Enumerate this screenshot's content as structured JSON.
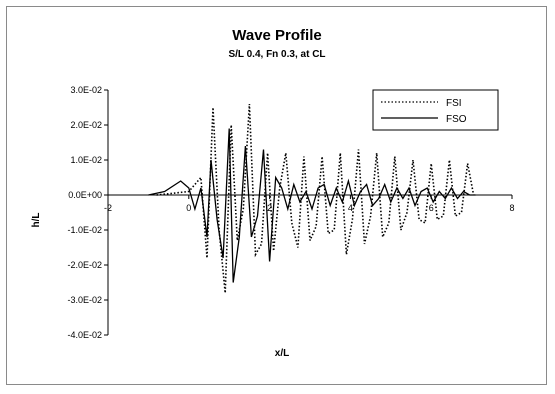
{
  "chart_data": {
    "type": "line",
    "title": "Wave Profile",
    "subtitle": "S/L 0.4, Fn 0.3, at CL",
    "xlabel": "x/L",
    "ylabel": "h/L",
    "xlim": [
      -2,
      8
    ],
    "ylim": [
      -0.04,
      0.03
    ],
    "x_ticks": [
      "-2",
      "0",
      "2",
      "4",
      "6",
      "8"
    ],
    "x_tick_values": [
      -2,
      0,
      2,
      4,
      6,
      8
    ],
    "y_ticks": [
      "3.0E-02",
      "2.0E-02",
      "1.0E-02",
      "0.0E+00",
      "-1.0E-02",
      "-2.0E-02",
      "-3.0E-02",
      "-4.0E-02"
    ],
    "y_tick_values": [
      0.03,
      0.02,
      0.01,
      0,
      -0.01,
      -0.02,
      -0.03,
      -0.04
    ],
    "grid": false,
    "legend_position": "top-right",
    "series": [
      {
        "name": "FSI",
        "style": "dotted",
        "color": "#000000",
        "x": [
          -0.8,
          -0.4,
          0.0,
          0.3,
          0.45,
          0.6,
          0.75,
          0.9,
          1.05,
          1.2,
          1.35,
          1.5,
          1.65,
          1.8,
          1.95,
          2.1,
          2.25,
          2.4,
          2.55,
          2.7,
          2.85,
          3.0,
          3.15,
          3.3,
          3.45,
          3.6,
          3.75,
          3.9,
          4.05,
          4.2,
          4.35,
          4.5,
          4.65,
          4.8,
          4.95,
          5.1,
          5.25,
          5.4,
          5.55,
          5.7,
          5.85,
          6.0,
          6.15,
          6.3,
          6.45,
          6.6,
          6.75,
          6.9,
          7.05
        ],
        "y": [
          0.0,
          0.0005,
          0.001,
          0.005,
          -0.018,
          0.025,
          -0.01,
          -0.028,
          0.02,
          -0.013,
          -0.004,
          0.026,
          -0.017,
          -0.014,
          0.012,
          -0.016,
          0.002,
          0.012,
          -0.008,
          -0.015,
          0.011,
          -0.013,
          -0.009,
          0.011,
          -0.011,
          -0.01,
          0.012,
          -0.017,
          -0.007,
          0.013,
          -0.014,
          -0.006,
          0.012,
          -0.012,
          -0.008,
          0.011,
          -0.01,
          -0.005,
          0.01,
          -0.007,
          -0.008,
          0.009,
          -0.007,
          -0.006,
          0.01,
          -0.006,
          -0.005,
          0.009,
          0.0
        ]
      },
      {
        "name": "FSO",
        "style": "solid",
        "color": "#000000",
        "x": [
          -1.0,
          -0.6,
          -0.2,
          0.0,
          0.15,
          0.3,
          0.45,
          0.55,
          0.7,
          0.85,
          1.0,
          1.1,
          1.25,
          1.4,
          1.55,
          1.7,
          1.85,
          2.0,
          2.15,
          2.3,
          2.45,
          2.6,
          2.75,
          2.9,
          3.05,
          3.2,
          3.35,
          3.5,
          3.65,
          3.8,
          3.95,
          4.1,
          4.25,
          4.4,
          4.55,
          4.7,
          4.85,
          5.0,
          5.15,
          5.3,
          5.45,
          5.6,
          5.75,
          5.9,
          6.05,
          6.2,
          6.35,
          6.5,
          6.65,
          6.8,
          6.95,
          7.1
        ],
        "y": [
          0.0,
          0.001,
          0.004,
          0.002,
          -0.004,
          0.002,
          -0.012,
          0.01,
          -0.007,
          -0.018,
          0.019,
          -0.025,
          -0.012,
          0.014,
          -0.012,
          -0.006,
          0.013,
          -0.019,
          0.005,
          0.002,
          -0.004,
          0.003,
          -0.002,
          0.001,
          -0.004,
          0.002,
          0.003,
          -0.003,
          0.002,
          -0.002,
          0.004,
          -0.003,
          0.001,
          0.003,
          -0.003,
          -0.001,
          0.003,
          -0.002,
          0.002,
          -0.001,
          0.002,
          -0.003,
          0.001,
          0.002,
          -0.002,
          0.001,
          -0.001,
          0.002,
          -0.001,
          0.001,
          0.0,
          0.0
        ]
      }
    ]
  }
}
